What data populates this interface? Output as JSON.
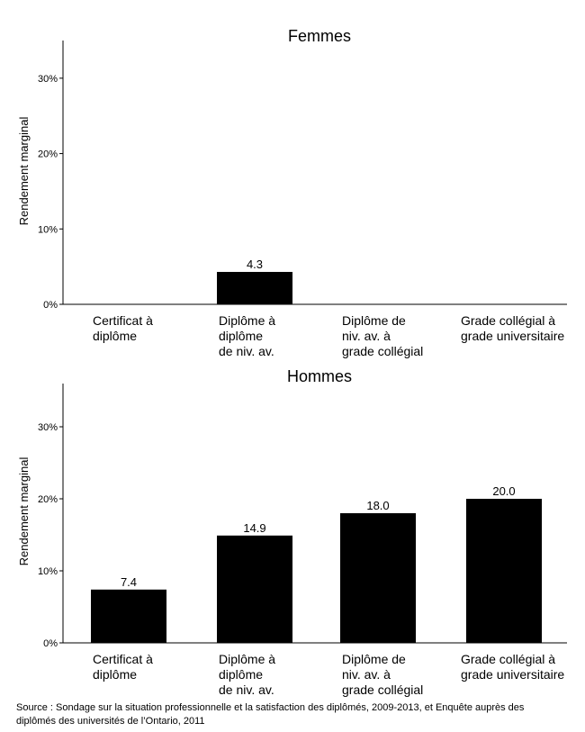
{
  "chart_data": [
    {
      "type": "bar",
      "title": "Femmes",
      "ylabel": "Rendement marginal",
      "xlabel": "",
      "ylim": [
        0,
        35
      ],
      "yticks": [
        "0%",
        "10%",
        "20%",
        "30%"
      ],
      "categories": [
        [
          "Certificat à",
          "diplôme"
        ],
        [
          "Diplôme à",
          "diplôme",
          "de niv. av."
        ],
        [
          "Diplôme de",
          "niv. av. à",
          "grade collégial"
        ],
        [
          "Grade collégial à",
          "grade universitaire"
        ]
      ],
      "values": [
        null,
        4.3,
        null,
        null
      ],
      "data_labels": [
        "",
        "4.3",
        "",
        ""
      ],
      "bar_color": "#000000",
      "grid": false
    },
    {
      "type": "bar",
      "title": "Hommes",
      "ylabel": "Rendement marginal",
      "xlabel": "",
      "ylim": [
        0,
        36
      ],
      "yticks": [
        "0%",
        "10%",
        "20%",
        "30%"
      ],
      "categories": [
        [
          "Certificat à",
          "diplôme"
        ],
        [
          "Diplôme à",
          "diplôme",
          "de niv. av."
        ],
        [
          "Diplôme de",
          "niv. av. à",
          "grade collégial"
        ],
        [
          "Grade collégial à",
          "grade universitaire"
        ]
      ],
      "values": [
        7.4,
        14.9,
        18.0,
        20.0
      ],
      "data_labels": [
        "7.4",
        "14.9",
        "18.0",
        "20.0"
      ],
      "bar_color": "#000000",
      "grid": false
    }
  ],
  "source": [
    "Source : Sondage sur la situation professionnelle et la satisfaction des diplômés, 2009-2013, et Enquête auprès des",
    "diplômés des universités de l’Ontario, 2011"
  ]
}
